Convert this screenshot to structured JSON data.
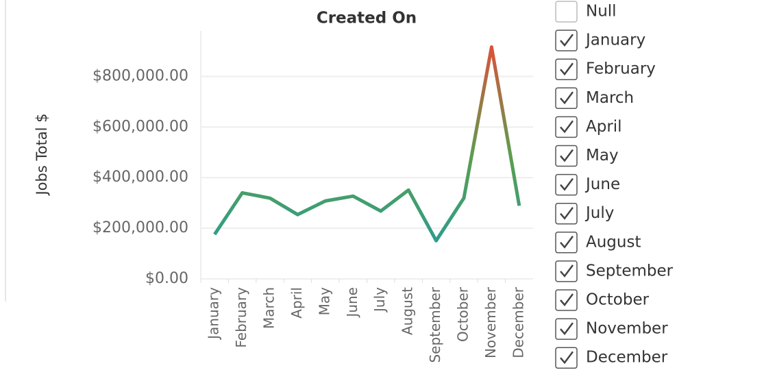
{
  "chart_data": {
    "type": "line",
    "title": "Created On",
    "y_label": "Jobs Total $",
    "categories": [
      "January",
      "February",
      "March",
      "April",
      "May",
      "June",
      "July",
      "August",
      "September",
      "October",
      "November",
      "December"
    ],
    "values": [
      176000,
      340000,
      319000,
      254000,
      308000,
      327000,
      268000,
      351000,
      151000,
      319000,
      916000,
      289000
    ],
    "color_range": [
      "#2a9d8f",
      "#5a9e4f",
      "#d9533b"
    ],
    "ylim": [
      0,
      980000
    ],
    "yticks": [
      {
        "value": 0,
        "label": "$0.00"
      },
      {
        "value": 200000,
        "label": "$200,000.00"
      },
      {
        "value": 400000,
        "label": "$400,000.00"
      },
      {
        "value": 600000,
        "label": "$600,000.00"
      },
      {
        "value": 800000,
        "label": "$800,000.00"
      }
    ],
    "grid": true
  },
  "filter": {
    "items": [
      {
        "label": "Null",
        "checked": false
      },
      {
        "label": "January",
        "checked": true
      },
      {
        "label": "February",
        "checked": true
      },
      {
        "label": "March",
        "checked": true
      },
      {
        "label": "April",
        "checked": true
      },
      {
        "label": "May",
        "checked": true
      },
      {
        "label": "June",
        "checked": true
      },
      {
        "label": "July",
        "checked": true
      },
      {
        "label": "August",
        "checked": true
      },
      {
        "label": "September",
        "checked": true
      },
      {
        "label": "October",
        "checked": true
      },
      {
        "label": "November",
        "checked": true
      },
      {
        "label": "December",
        "checked": true
      }
    ]
  }
}
